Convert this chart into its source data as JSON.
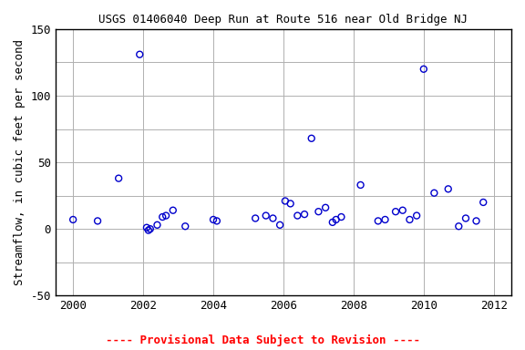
{
  "title": "USGS 01406040 Deep Run at Route 516 near Old Bridge NJ",
  "ylabel": "Streamflow, in cubic feet per second",
  "footer": "---- Provisional Data Subject to Revision ----",
  "xlim": [
    1999.5,
    2012.5
  ],
  "ylim": [
    -50,
    150
  ],
  "yticks": [
    -50,
    0,
    50,
    100,
    150
  ],
  "ygrid_ticks": [
    -50,
    -25,
    0,
    25,
    50,
    75,
    100,
    125,
    150
  ],
  "xticks": [
    2000,
    2002,
    2004,
    2006,
    2008,
    2010,
    2012
  ],
  "x": [
    2000.0,
    2000.7,
    2001.3,
    2001.9,
    2002.1,
    2002.15,
    2002.2,
    2002.4,
    2002.55,
    2002.65,
    2002.85,
    2003.2,
    2004.0,
    2004.1,
    2005.2,
    2005.5,
    2005.7,
    2005.9,
    2006.05,
    2006.2,
    2006.4,
    2006.6,
    2006.8,
    2007.0,
    2007.2,
    2007.4,
    2007.5,
    2007.65,
    2008.2,
    2008.7,
    2008.9,
    2009.2,
    2009.4,
    2009.6,
    2009.8,
    2010.0,
    2010.3,
    2010.7,
    2011.0,
    2011.2,
    2011.5,
    2011.7
  ],
  "y": [
    7,
    6,
    38,
    131,
    1,
    -1,
    0,
    3,
    9,
    10,
    14,
    2,
    7,
    6,
    8,
    10,
    8,
    3,
    21,
    19,
    10,
    11,
    68,
    13,
    16,
    5,
    7,
    9,
    33,
    6,
    7,
    13,
    14,
    7,
    10,
    120,
    27,
    30,
    2,
    8,
    6,
    20
  ],
  "marker_color": "#0000cc",
  "marker_size": 5,
  "bg_color": "#ffffff",
  "grid_color": "#b0b0b0",
  "title_fontsize": 9,
  "ylabel_fontsize": 9,
  "tick_fontsize": 9,
  "footer_color": "#ff0000",
  "footer_fontsize": 9
}
